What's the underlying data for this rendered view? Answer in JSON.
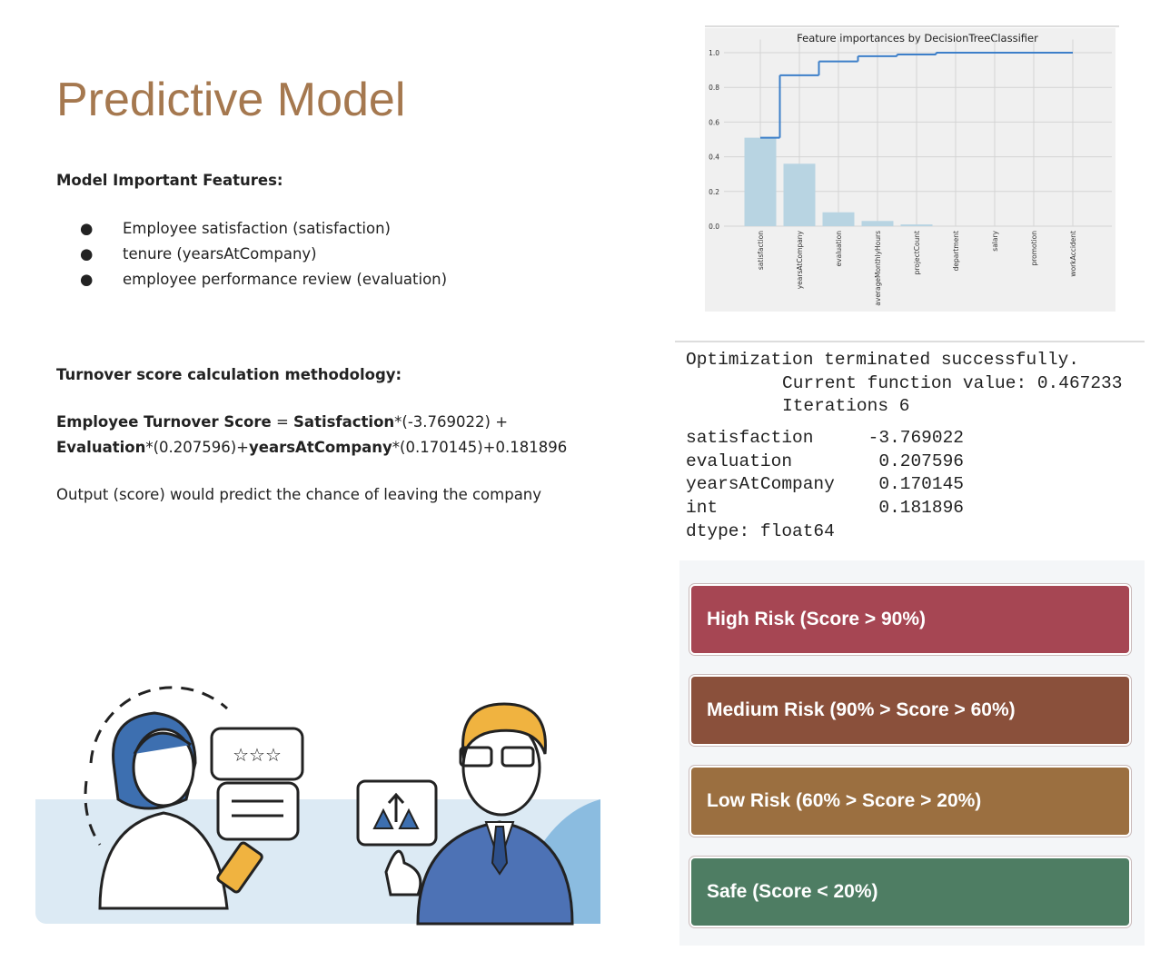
{
  "title": "Predictive Model",
  "features": {
    "heading": "Model Important Features:",
    "items": [
      "Employee satisfaction (satisfaction)",
      "tenure (yearsAtCompany)",
      "employee performance review (evaluation)"
    ]
  },
  "methodology": {
    "heading": "Turnover score calculation methodology:",
    "formula_lines": [
      [
        {
          "text": "Employee Turnover Score",
          "bold": true
        },
        {
          "text": " = ",
          "bold": false
        },
        {
          "text": "Satisfaction",
          "bold": true
        },
        {
          "text": "*(-3.769022) +",
          "bold": false
        }
      ],
      [
        {
          "text": "Evaluation",
          "bold": true
        },
        {
          "text": "*(0.207596)+",
          "bold": false
        },
        {
          "text": "yearsAtCompany",
          "bold": true
        },
        {
          "text": "*(0.170145)+0.181896",
          "bold": false
        }
      ]
    ],
    "note": "Output (score) would predict the chance of leaving the company"
  },
  "chart_data": {
    "type": "bar",
    "title": "Feature importances by DecisionTreeClassifier",
    "categories": [
      "satisfaction",
      "yearsAtCompany",
      "evaluation",
      "averageMonthlyHours",
      "projectCount",
      "department",
      "salary",
      "promotion",
      "workAccident"
    ],
    "values": [
      0.51,
      0.36,
      0.08,
      0.03,
      0.01,
      0,
      0,
      0,
      0
    ],
    "color": "#b8d4e2",
    "line": {
      "values": [
        0.51,
        0.87,
        0.95,
        0.98,
        0.99,
        1.0,
        1.0,
        1.0,
        1.0
      ],
      "color": "#3d7fc9"
    },
    "ylim": [
      0,
      1.05
    ],
    "yticks": [
      {
        "value": 0,
        "label": "0.0"
      },
      {
        "value": 0.2,
        "label": "0.2"
      },
      {
        "value": 0.4,
        "label": "0.4"
      },
      {
        "value": 0.6,
        "label": "0.6"
      },
      {
        "value": 0.8,
        "label": "0.8"
      },
      {
        "value": 1,
        "label": "1.0"
      }
    ],
    "grid": true
  },
  "console": {
    "status": [
      "Optimization terminated successfully.",
      "Current function value: 0.467233",
      "Iterations 6"
    ],
    "rows": [
      [
        "satisfaction",
        "-3.769022"
      ],
      [
        "evaluation",
        "0.207596"
      ],
      [
        "yearsAtCompany",
        "0.170145"
      ],
      [
        "int",
        "0.181896"
      ]
    ],
    "dtype": "dtype: float64"
  },
  "risk_levels": [
    {
      "label": "High Risk (Score > 90%)",
      "color": "#a64653"
    },
    {
      "label": "Medium Risk (90% > Score > 60%)",
      "color": "#8a503b"
    },
    {
      "label": "Low Risk (60% > Score > 20%)",
      "color": "#9b6f40"
    },
    {
      "label": "Safe (Score < 20%)",
      "color": "#4e7d63"
    }
  ]
}
